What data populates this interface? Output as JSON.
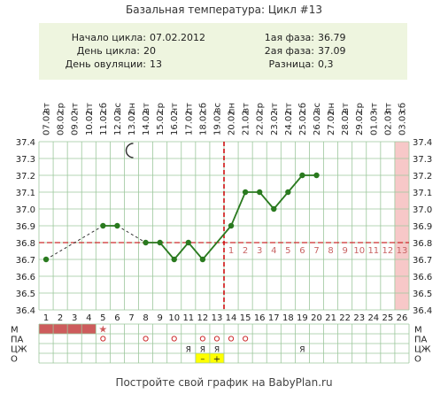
{
  "title": "Базальная температура: Цикл #13",
  "info": {
    "start_label": "Начало цикла:",
    "start_value": "07.02.2012",
    "day_label": "День цикла:",
    "day_value": "20",
    "ovulation_label": "День овуляции:",
    "ovulation_value": "13",
    "phase1_label": "1ая фаза:",
    "phase1_value": "36.79",
    "phase2_label": "2ая фаза:",
    "phase2_value": "37.09",
    "diff_label": "Разница:",
    "diff_value": "0,3"
  },
  "footer": "Постройте свой график на BabyPlan.ru",
  "colors": {
    "line": "#2a7a1f",
    "dashed": "#333333",
    "coverline": "#cc2a2a",
    "ovulation": "#cc0000",
    "grid": "#9cc79c",
    "period": "#cd5c5c",
    "future": "#f7c8c8",
    "info_bg": "#eef5df",
    "luteal_text": "#c86464",
    "yellow": "#ffff00"
  },
  "chart_data": {
    "type": "line",
    "title": "Базальная температура: Цикл #13",
    "x": [
      1,
      2,
      3,
      4,
      5,
      6,
      7,
      8,
      9,
      10,
      11,
      12,
      13,
      14,
      15,
      16,
      17,
      18,
      19,
      20,
      21,
      22,
      23,
      24,
      25,
      26
    ],
    "dates": [
      "07.02",
      "08.02",
      "09.02",
      "10.02",
      "11.02",
      "12.02",
      "13.02",
      "14.02",
      "15.02",
      "16.02",
      "17.02",
      "18.02",
      "19.02",
      "20.02",
      "21.02",
      "22.02",
      "23.02",
      "24.02",
      "25.02",
      "26.02",
      "27.02",
      "28.02",
      "29.02",
      "01.03",
      "02.03",
      "03.03"
    ],
    "weekdays": [
      "вт",
      "ср",
      "чт",
      "пт",
      "сб",
      "вс",
      "пн",
      "вт",
      "ср",
      "чт",
      "пт",
      "сб",
      "вс",
      "пн",
      "вт",
      "ср",
      "чт",
      "пт",
      "сб",
      "вс",
      "пн",
      "вт",
      "ср",
      "чт",
      "пт",
      "сб"
    ],
    "temperatures": [
      36.7,
      null,
      null,
      null,
      36.9,
      36.9,
      null,
      36.8,
      36.8,
      36.7,
      36.8,
      36.7,
      null,
      36.9,
      37.1,
      37.1,
      37.0,
      37.1,
      37.2,
      37.2,
      null,
      null,
      null,
      null,
      null,
      null
    ],
    "excluded_days": [
      2,
      3,
      4,
      7,
      13
    ],
    "ylim": [
      36.4,
      37.4
    ],
    "yticks": [
      "36.4",
      "36.5",
      "36.6",
      "36.7",
      "36.8",
      "36.9",
      "37.0",
      "37.1",
      "37.2",
      "37.3",
      "37.4"
    ],
    "coverline": 36.8,
    "ovulation_day": 13,
    "luteal_day_labels": [
      "1",
      "2",
      "3",
      "4",
      "5",
      "6",
      "7",
      "8",
      "9",
      "10",
      "11",
      "12",
      "13"
    ],
    "luteal_start_day": 14,
    "moon_day": 7,
    "future_day": 26,
    "rows": [
      {
        "label": "М",
        "period_days": [
          1,
          2,
          3,
          4
        ],
        "star_day": 5,
        "star": "★"
      },
      {
        "label": "ПА",
        "mark": "о",
        "days": [
          5,
          8,
          10,
          12,
          13,
          14,
          15
        ]
      },
      {
        "label": "ЦЖ",
        "mark": "Я",
        "days": [
          11,
          12,
          13,
          19
        ]
      },
      {
        "label": "О",
        "cells": [
          {
            "day": 12,
            "text": "–"
          },
          {
            "day": 13,
            "text": "+"
          }
        ]
      }
    ]
  }
}
